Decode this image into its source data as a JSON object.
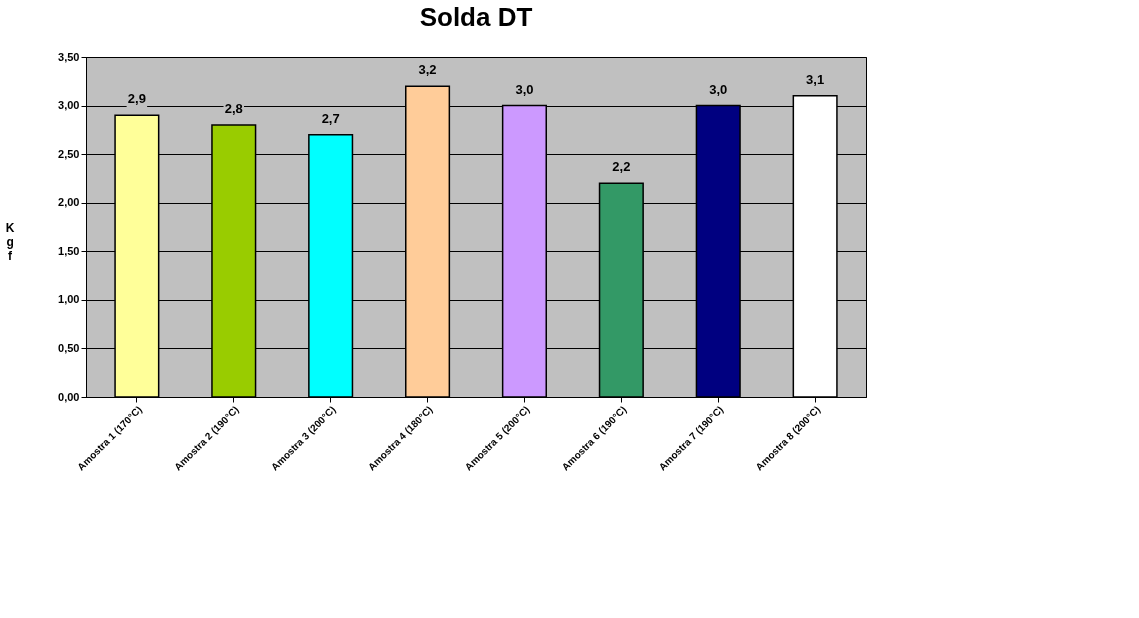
{
  "chart_data": {
    "type": "bar",
    "title": "Solda DT",
    "ylabel": "Kgf",
    "categories": [
      "Amostra 1 (170°C)",
      "Amostra 2 (190°C)",
      "Amostra 3 (200°C)",
      "Amostra 4 (180°C)",
      "Amostra 5 (200°C)",
      "Amostra 6 (190°C)",
      "Amostra 7 (190°C)",
      "Amostra 8 (200°C)"
    ],
    "values": [
      2.9,
      2.8,
      2.7,
      3.2,
      3.0,
      2.2,
      3.0,
      3.1
    ],
    "value_labels": [
      "2,9",
      "2,8",
      "2,7",
      "3,2",
      "3,0",
      "2,2",
      "3,0",
      "3,1"
    ],
    "colors": [
      "#ffff99",
      "#99cc00",
      "#00ffff",
      "#ffcc99",
      "#cc99ff",
      "#339966",
      "#000080",
      "#ffffff"
    ],
    "ylim": [
      0,
      3.5
    ],
    "yticks": [
      {
        "value": 0,
        "label": "0,00"
      },
      {
        "value": 0.5,
        "label": "0,50"
      },
      {
        "value": 1,
        "label": "1,00"
      },
      {
        "value": 1.5,
        "label": "1,50"
      },
      {
        "value": 2,
        "label": "2,00"
      },
      {
        "value": 2.5,
        "label": "2,50"
      },
      {
        "value": 3,
        "label": "3,00"
      },
      {
        "value": 3.5,
        "label": "3,50"
      }
    ],
    "grid": "y"
  }
}
